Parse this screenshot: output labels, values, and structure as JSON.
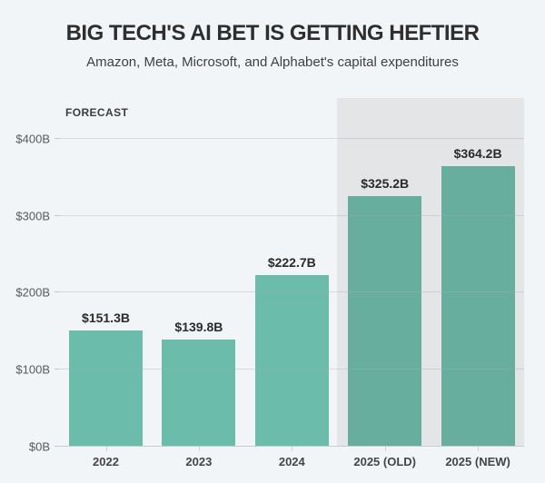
{
  "header": {
    "title": "BIG TECH'S AI BET IS GETTING HEFTIER",
    "subtitle": "Amazon, Meta, Microsoft, and Alphabet's capital expenditures"
  },
  "colors": {
    "background": "#f2f5f8",
    "bar": "#6cbcab",
    "bar_forecast": "#67ae9e",
    "forecast_band": "#e3e5e7",
    "grid": "#aab3bb",
    "axis": "#c6ccd1",
    "title_text": "#2e2e2e",
    "data_label_text": "#2a2a2a"
  },
  "chart_data": {
    "type": "bar",
    "title": "BIG TECH'S AI BET IS GETTING HEFTIER",
    "subtitle": "Amazon, Meta, Microsoft, and Alphabet's capital expenditures",
    "categories": [
      "2022",
      "2023",
      "2024",
      "2025 (OLD)",
      "2025 (NEW)"
    ],
    "values": [
      151.3,
      139.8,
      222.7,
      325.2,
      364.2
    ],
    "data_labels": [
      "$151.3B",
      "$139.8B",
      "$222.7B",
      "$325.2B",
      "$364.2B"
    ],
    "forecast_categories": [
      "2025 (OLD)",
      "2025 (NEW)"
    ],
    "annotation": "FORECAST",
    "ylabel": "",
    "xlabel": "",
    "y_ticks": [
      {
        "value": 0,
        "label": "$0B"
      },
      {
        "value": 100,
        "label": "$100B"
      },
      {
        "value": 200,
        "label": "$200B"
      },
      {
        "value": 300,
        "label": "$300B"
      },
      {
        "value": 400,
        "label": "$400B"
      }
    ],
    "ylim": [
      0,
      453
    ],
    "grid": "horizontal",
    "legend": "none"
  }
}
